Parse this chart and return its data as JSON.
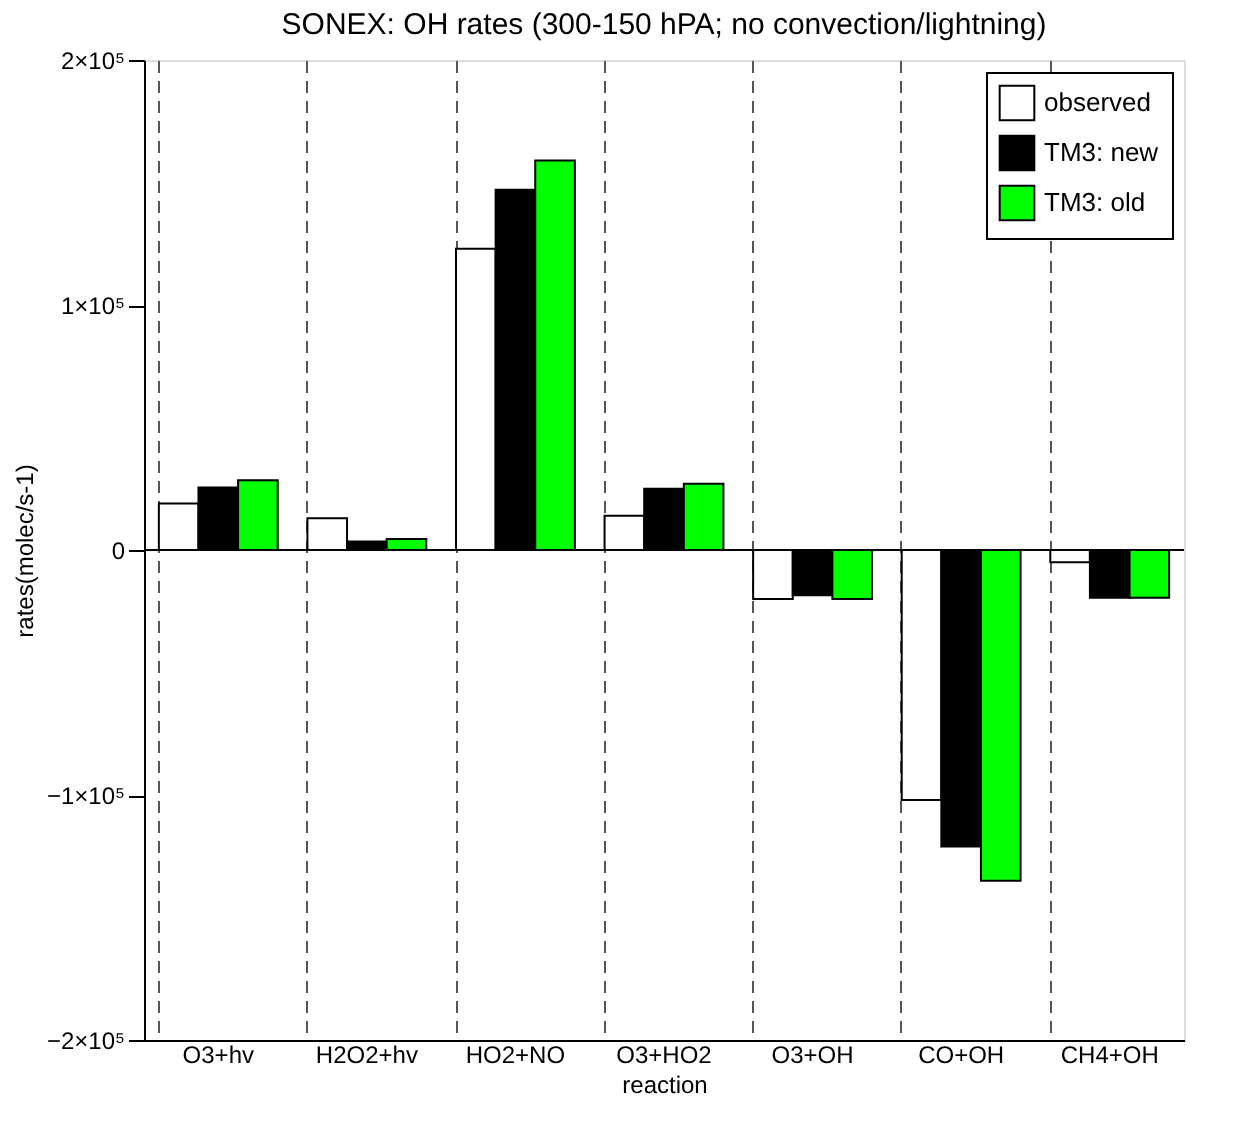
{
  "chart_data": {
    "type": "bar",
    "title": "SONEX: OH rates (300-150 hPA; no convection/lightning)",
    "xlabel": "reaction",
    "ylabel": "rates(molec/s-1)",
    "categories": [
      "O3+hv",
      "H2O2+hv",
      "HO2+NO",
      "O3+HO2",
      "O3+OH",
      "CO+OH",
      "CH4+OH"
    ],
    "series": [
      {
        "name": "observed",
        "color": "#ffffff",
        "values": [
          19000,
          13000,
          123000,
          14000,
          -20000,
          -102000,
          -5000
        ]
      },
      {
        "name": "TM3: new",
        "color": "#000000",
        "values": [
          25500,
          3500,
          147000,
          25000,
          -18500,
          -121000,
          -19500
        ]
      },
      {
        "name": "TM3: old",
        "color": "#00ff00",
        "values": [
          28500,
          4500,
          159000,
          27000,
          -20000,
          -135000,
          -19500
        ]
      }
    ],
    "ylim": [
      -200000,
      200000
    ],
    "yticks": [
      {
        "value": -200000,
        "label": "−2×10⁵"
      },
      {
        "value": -100000,
        "label": "−1×10⁵"
      },
      0,
      {
        "value": 100000,
        "label": "1×10⁵"
      },
      {
        "value": 200000,
        "label": "2×10⁵"
      }
    ],
    "ref_lines": [
      {
        "axis": "y",
        "value": 0,
        "color": "#000000"
      }
    ],
    "grid": "x",
    "legend": "top right"
  }
}
